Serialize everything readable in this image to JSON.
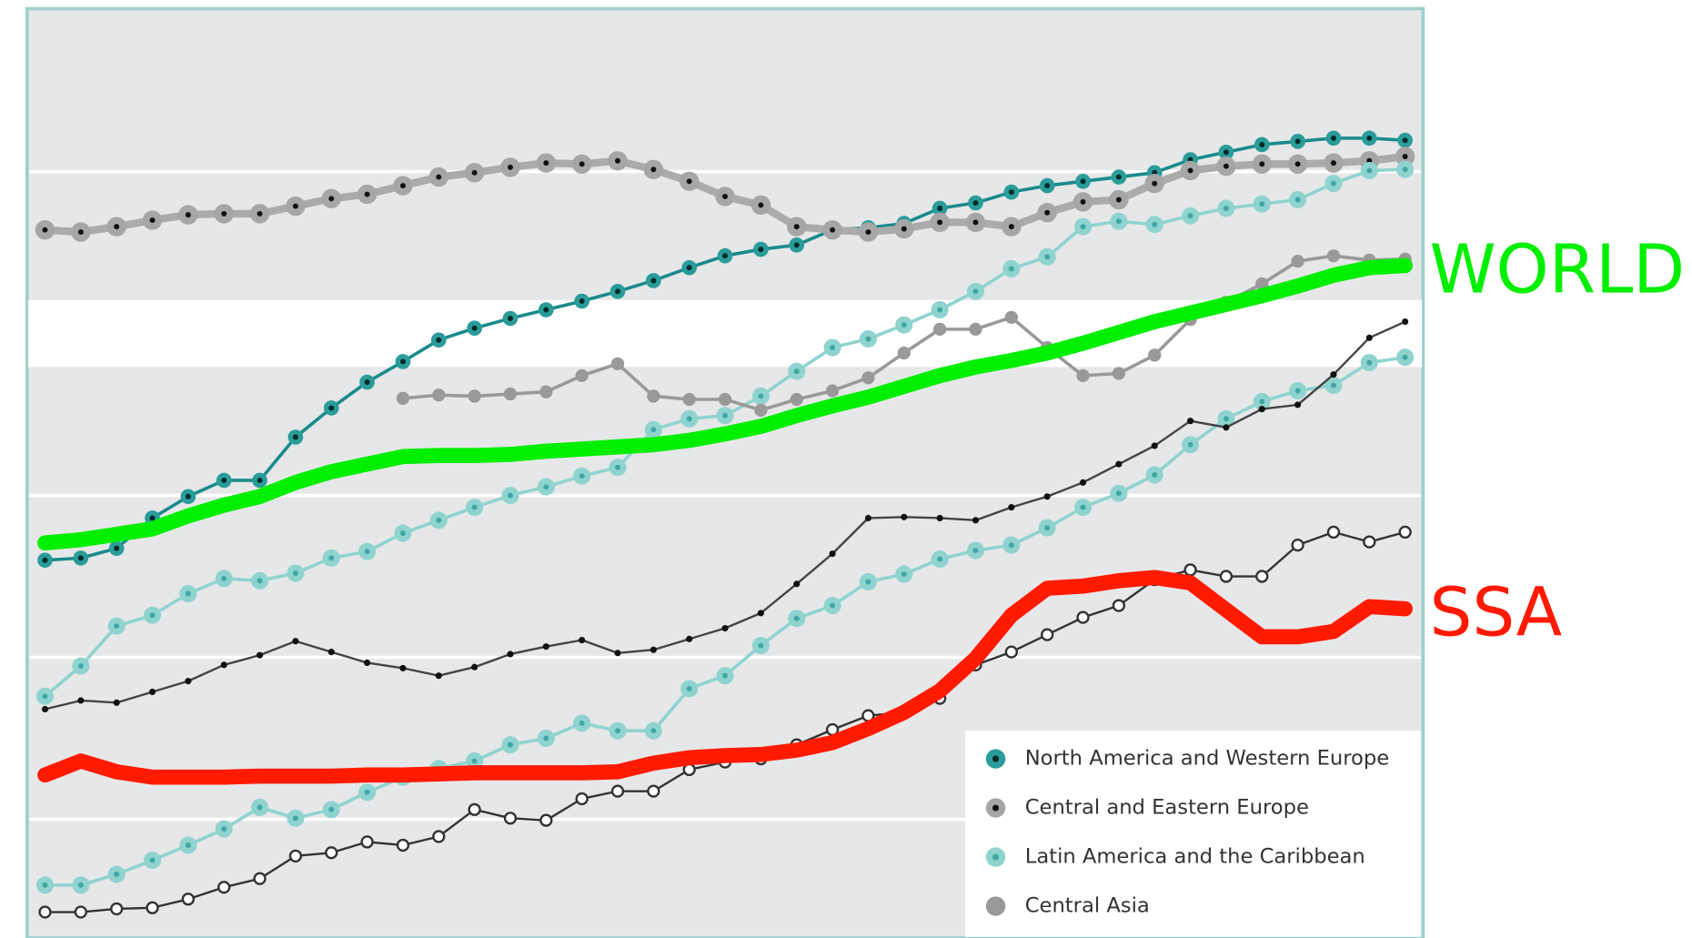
{
  "chart_data": {
    "type": "line",
    "categories": [
      null,
      null,
      null,
      null,
      null,
      null,
      null,
      null,
      null,
      null,
      null,
      null,
      null,
      null,
      null,
      null,
      null,
      null,
      null,
      null,
      null,
      null,
      null,
      null,
      null,
      null,
      null,
      null,
      null,
      null,
      null,
      null,
      null,
      null,
      null,
      null,
      null,
      null,
      null
    ],
    "ylim": [
      0,
      861
    ],
    "yticks": [
      110,
      260,
      410,
      560,
      710
    ],
    "grid": true,
    "legend": "lower right",
    "series": [
      {
        "name": "North America and Western Europe",
        "color": "#1a8a8a",
        "marker_fill": "#2a9c9a",
        "marker_center": "#062a2a",
        "line_width": 3,
        "marker_size": 7,
        "values": [
          350,
          352,
          361,
          389,
          409,
          424,
          424,
          464,
          491,
          515,
          534,
          554,
          565,
          574,
          582,
          590,
          599,
          609,
          621,
          632,
          638,
          642,
          656,
          658,
          662,
          676,
          681,
          691,
          697,
          701,
          705,
          709,
          721,
          728,
          735,
          738,
          741,
          741,
          739
        ]
      },
      {
        "name": "Central and Eastern Europe",
        "color": "#ababab",
        "marker_fill": "#a6a6a6",
        "marker_center": "#111111",
        "line_width": 7,
        "marker_size": 9,
        "values": [
          656,
          654,
          659,
          665,
          670,
          671,
          671,
          678,
          685,
          689,
          697,
          705,
          709,
          714,
          718,
          717,
          720,
          712,
          701,
          687,
          679,
          659,
          656,
          654,
          657,
          663,
          663,
          659,
          672,
          682,
          684,
          699,
          711,
          715,
          717,
          717,
          718,
          720,
          724
        ]
      },
      {
        "name": "Latin America and the Caribbean",
        "color": "#8fd3cf",
        "marker_fill": "#8fd3cf",
        "marker_center": "#3fa8a3",
        "line_width": 3,
        "marker_size": 8,
        "values": [
          224,
          252,
          289,
          299,
          319,
          333,
          331,
          338,
          352,
          358,
          375,
          387,
          399,
          410,
          418,
          428,
          436,
          471,
          481,
          484,
          502,
          525,
          547,
          555,
          568,
          582,
          599,
          620,
          631,
          659,
          664,
          661,
          669,
          676,
          680,
          684,
          699,
          711,
          712
        ]
      },
      {
        "name": "Central Asia",
        "color": "#999999",
        "marker_fill": "#999999",
        "line_width": 3,
        "marker_size": 6,
        "values": [
          null,
          null,
          null,
          null,
          null,
          null,
          null,
          null,
          null,
          null,
          500,
          503,
          502,
          504,
          506,
          521,
          532,
          502,
          499,
          499,
          489,
          499,
          507,
          519,
          542,
          564,
          564,
          575,
          547,
          521,
          523,
          540,
          573,
          589,
          606,
          627,
          632,
          628,
          629
        ]
      },
      {
        "color": "#8fd3cf",
        "marker_fill": "#8fd3cf",
        "marker_center": "#3fa8a3",
        "line_width": 3,
        "marker_size": 8,
        "values": [
          49,
          49,
          59,
          72,
          86,
          101,
          121,
          111,
          119,
          135,
          149,
          157,
          164,
          179,
          185,
          199,
          192,
          192,
          231,
          243,
          271,
          296,
          308,
          330,
          337,
          351,
          359,
          364,
          380,
          399,
          412,
          429,
          457,
          481,
          497,
          507,
          512,
          533,
          538
        ]
      },
      {
        "color": "#444444",
        "marker_fill": "#111111",
        "line_width": 2,
        "marker_size": 3,
        "values": [
          212,
          220,
          218,
          228,
          238,
          253,
          262,
          275,
          265,
          255,
          250,
          243,
          251,
          263,
          270,
          276,
          264,
          267,
          277,
          287,
          301,
          328,
          356,
          389,
          390,
          389,
          387,
          399,
          409,
          422,
          439,
          456,
          479,
          473,
          490,
          494,
          522,
          556,
          571
        ]
      },
      {
        "color": "#333333",
        "marker_fill": "#ffffff",
        "line_width": 2,
        "marker_size": 5,
        "values": [
          24,
          24,
          27,
          28,
          36,
          47,
          55,
          76,
          79,
          89,
          86,
          94,
          119,
          111,
          109,
          129,
          136,
          136,
          156,
          163,
          166,
          179,
          193,
          206,
          209,
          222,
          253,
          265,
          281,
          297,
          308,
          332,
          341,
          335,
          335,
          364,
          376,
          367,
          376
        ]
      },
      {
        "name": "WORLD",
        "color": "#00ee00",
        "line_width": 14,
        "label_size": 62,
        "values": [
          366,
          369,
          374,
          379,
          391,
          401,
          409,
          422,
          432,
          439,
          446,
          447,
          447,
          448,
          451,
          453,
          455,
          457,
          461,
          467,
          474,
          484,
          493,
          501,
          511,
          521,
          529,
          535,
          542,
          551,
          561,
          571,
          579,
          587,
          595,
          604,
          614,
          621,
          623
        ]
      },
      {
        "name": "SSA",
        "color": "#ff1a00",
        "line_width": 14,
        "label_size": 62,
        "values": [
          151,
          164,
          154,
          149,
          149,
          149,
          150,
          150,
          150,
          151,
          151,
          152,
          153,
          153,
          153,
          153,
          154,
          162,
          167,
          169,
          170,
          174,
          181,
          194,
          209,
          229,
          259,
          299,
          324,
          326,
          331,
          334,
          329,
          304,
          279,
          279,
          284,
          307,
          305
        ]
      }
    ]
  }
}
